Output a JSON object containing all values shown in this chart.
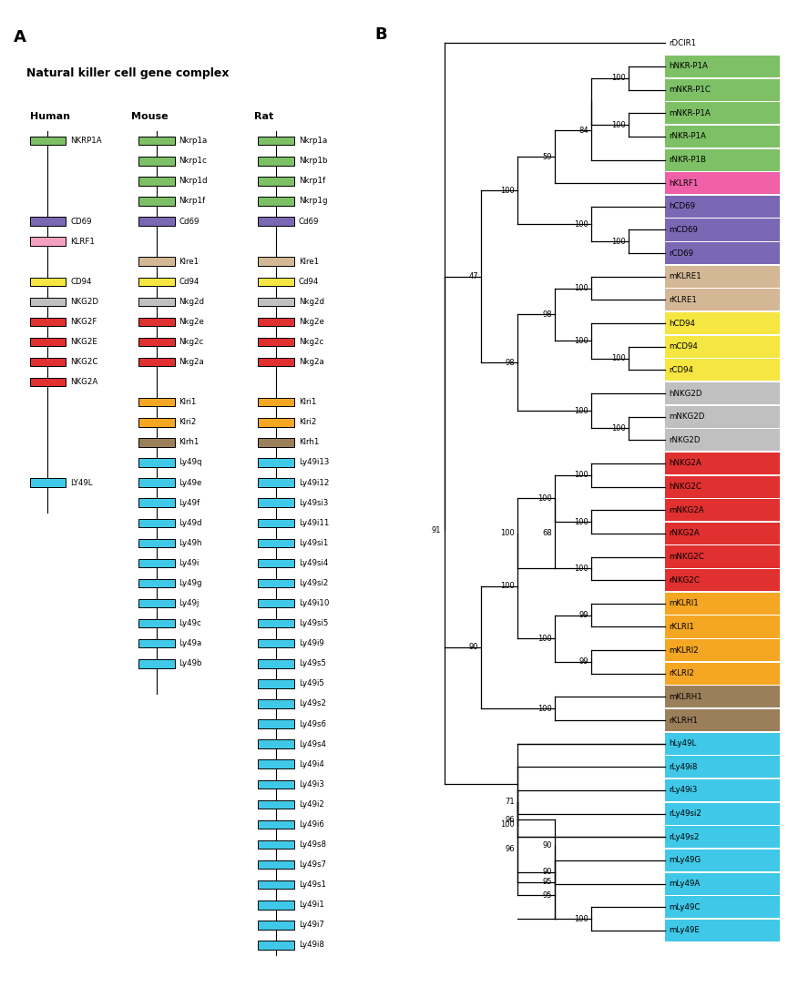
{
  "human_genes": [
    {
      "name": "NKRP1A",
      "color": "#7DC065",
      "row": 0
    },
    {
      "name": "CD69",
      "color": "#7B68B5",
      "row": 4
    },
    {
      "name": "KLRF1",
      "color": "#F4A0C0",
      "row": 5
    },
    {
      "name": "CD94",
      "color": "#F5E642",
      "row": 7
    },
    {
      "name": "NKG2D",
      "color": "#C0C0C0",
      "row": 8
    },
    {
      "name": "NKG2F",
      "color": "#E03030",
      "row": 9
    },
    {
      "name": "NKG2E",
      "color": "#E03030",
      "row": 10
    },
    {
      "name": "NKG2C",
      "color": "#E03030",
      "row": 11
    },
    {
      "name": "NKG2A",
      "color": "#E03030",
      "row": 12
    },
    {
      "name": "LY49L",
      "color": "#40C8E8",
      "row": 17
    }
  ],
  "mouse_genes": [
    {
      "name": "Nkrp1a",
      "color": "#7DC065",
      "row": 0
    },
    {
      "name": "Nkrp1c",
      "color": "#7DC065",
      "row": 1
    },
    {
      "name": "Nkrp1d",
      "color": "#7DC065",
      "row": 2
    },
    {
      "name": "Nkrp1f",
      "color": "#7DC065",
      "row": 3
    },
    {
      "name": "Cd69",
      "color": "#7B68B5",
      "row": 4
    },
    {
      "name": "Klre1",
      "color": "#D4B896",
      "row": 6
    },
    {
      "name": "Cd94",
      "color": "#F5E642",
      "row": 7
    },
    {
      "name": "Nkg2d",
      "color": "#C0C0C0",
      "row": 8
    },
    {
      "name": "Nkg2e",
      "color": "#E03030",
      "row": 9
    },
    {
      "name": "Nkg2c",
      "color": "#E03030",
      "row": 10
    },
    {
      "name": "Nkg2a",
      "color": "#E03030",
      "row": 11
    },
    {
      "name": "Klri1",
      "color": "#F5A623",
      "row": 13
    },
    {
      "name": "Klri2",
      "color": "#F5A623",
      "row": 14
    },
    {
      "name": "Klrh1",
      "color": "#9B7F5A",
      "row": 15
    },
    {
      "name": "Ly49q",
      "color": "#40C8E8",
      "row": 16
    },
    {
      "name": "Ly49e",
      "color": "#40C8E8",
      "row": 17
    },
    {
      "name": "Ly49f",
      "color": "#40C8E8",
      "row": 18
    },
    {
      "name": "Ly49d",
      "color": "#40C8E8",
      "row": 19
    },
    {
      "name": "Ly49h",
      "color": "#40C8E8",
      "row": 20
    },
    {
      "name": "Ly49i",
      "color": "#40C8E8",
      "row": 21
    },
    {
      "name": "Ly49g",
      "color": "#40C8E8",
      "row": 22
    },
    {
      "name": "Ly49j",
      "color": "#40C8E8",
      "row": 23
    },
    {
      "name": "Ly49c",
      "color": "#40C8E8",
      "row": 24
    },
    {
      "name": "Ly49a",
      "color": "#40C8E8",
      "row": 25
    },
    {
      "name": "Ly49b",
      "color": "#40C8E8",
      "row": 26
    }
  ],
  "rat_genes": [
    {
      "name": "Nkrp1a",
      "color": "#7DC065",
      "row": 0
    },
    {
      "name": "Nkrp1b",
      "color": "#7DC065",
      "row": 1
    },
    {
      "name": "Nkrp1f",
      "color": "#7DC065",
      "row": 2
    },
    {
      "name": "Nkrp1g",
      "color": "#7DC065",
      "row": 3
    },
    {
      "name": "Cd69",
      "color": "#7B68B5",
      "row": 4
    },
    {
      "name": "Klre1",
      "color": "#D4B896",
      "row": 6
    },
    {
      "name": "Cd94",
      "color": "#F5E642",
      "row": 7
    },
    {
      "name": "Nkg2d",
      "color": "#C0C0C0",
      "row": 8
    },
    {
      "name": "Nkg2e",
      "color": "#E03030",
      "row": 9
    },
    {
      "name": "Nkg2c",
      "color": "#E03030",
      "row": 10
    },
    {
      "name": "Nkg2a",
      "color": "#E03030",
      "row": 11
    },
    {
      "name": "Klri1",
      "color": "#F5A623",
      "row": 13
    },
    {
      "name": "Klri2",
      "color": "#F5A623",
      "row": 14
    },
    {
      "name": "Klrh1",
      "color": "#9B7F5A",
      "row": 15
    },
    {
      "name": "Ly49i13",
      "color": "#40C8E8",
      "row": 16
    },
    {
      "name": "Ly49i12",
      "color": "#40C8E8",
      "row": 17
    },
    {
      "name": "Ly49si3",
      "color": "#40C8E8",
      "row": 18
    },
    {
      "name": "Ly49i11",
      "color": "#40C8E8",
      "row": 19
    },
    {
      "name": "Ly49si1",
      "color": "#40C8E8",
      "row": 20
    },
    {
      "name": "Ly49si4",
      "color": "#40C8E8",
      "row": 21
    },
    {
      "name": "Ly49si2",
      "color": "#40C8E8",
      "row": 22
    },
    {
      "name": "Ly49i10",
      "color": "#40C8E8",
      "row": 23
    },
    {
      "name": "Ly49si5",
      "color": "#40C8E8",
      "row": 24
    },
    {
      "name": "Ly49i9",
      "color": "#40C8E8",
      "row": 25
    },
    {
      "name": "Ly49s5",
      "color": "#40C8E8",
      "row": 26
    },
    {
      "name": "Ly49i5",
      "color": "#40C8E8",
      "row": 27
    },
    {
      "name": "Ly49s2",
      "color": "#40C8E8",
      "row": 28
    },
    {
      "name": "Ly49s6",
      "color": "#40C8E8",
      "row": 29
    },
    {
      "name": "Ly49s4",
      "color": "#40C8E8",
      "row": 30
    },
    {
      "name": "Ly49i4",
      "color": "#40C8E8",
      "row": 31
    },
    {
      "name": "Ly49i3",
      "color": "#40C8E8",
      "row": 32
    },
    {
      "name": "Ly49i2",
      "color": "#40C8E8",
      "row": 33
    },
    {
      "name": "Ly49i6",
      "color": "#40C8E8",
      "row": 34
    },
    {
      "name": "Ly49s8",
      "color": "#40C8E8",
      "row": 35
    },
    {
      "name": "Ly49s7",
      "color": "#40C8E8",
      "row": 36
    },
    {
      "name": "Ly49s1",
      "color": "#40C8E8",
      "row": 37
    },
    {
      "name": "Ly49i1",
      "color": "#40C8E8",
      "row": 38
    },
    {
      "name": "Ly49i7",
      "color": "#40C8E8",
      "row": 39
    },
    {
      "name": "Ly49i8",
      "color": "#40C8E8",
      "row": 40
    }
  ],
  "tree_leaves": [
    {
      "name": "rDCIR1",
      "y": 1,
      "bg": "white"
    },
    {
      "name": "hNKR-P1A",
      "y": 2,
      "bg": "#7DC065"
    },
    {
      "name": "mNKR-P1C",
      "y": 3,
      "bg": "#7DC065"
    },
    {
      "name": "mNKR-P1A",
      "y": 4,
      "bg": "#7DC065"
    },
    {
      "name": "rNKR-P1A",
      "y": 5,
      "bg": "#7DC065"
    },
    {
      "name": "rNKR-P1B",
      "y": 6,
      "bg": "#7DC065"
    },
    {
      "name": "hKLRF1",
      "y": 7,
      "bg": "#F060A8"
    },
    {
      "name": "hCD69",
      "y": 8,
      "bg": "#7B68B5"
    },
    {
      "name": "mCD69",
      "y": 9,
      "bg": "#7B68B5"
    },
    {
      "name": "rCD69",
      "y": 10,
      "bg": "#7B68B5"
    },
    {
      "name": "mKLRE1",
      "y": 11,
      "bg": "#D4B896"
    },
    {
      "name": "rKLRE1",
      "y": 12,
      "bg": "#D4B896"
    },
    {
      "name": "hCD94",
      "y": 13,
      "bg": "#F5E642"
    },
    {
      "name": "mCD94",
      "y": 14,
      "bg": "#F5E642"
    },
    {
      "name": "rCD94",
      "y": 15,
      "bg": "#F5E642"
    },
    {
      "name": "hNKG2D",
      "y": 16,
      "bg": "#C0C0C0"
    },
    {
      "name": "mNKG2D",
      "y": 17,
      "bg": "#C0C0C0"
    },
    {
      "name": "rNKG2D",
      "y": 18,
      "bg": "#C0C0C0"
    },
    {
      "name": "hNKG2A",
      "y": 19,
      "bg": "#E03030"
    },
    {
      "name": "hNKG2C",
      "y": 20,
      "bg": "#E03030"
    },
    {
      "name": "mNKG2A",
      "y": 21,
      "bg": "#E03030"
    },
    {
      "name": "rNKG2A",
      "y": 22,
      "bg": "#E03030"
    },
    {
      "name": "mNKG2C",
      "y": 23,
      "bg": "#E03030"
    },
    {
      "name": "rNKG2C",
      "y": 24,
      "bg": "#E03030"
    },
    {
      "name": "mKLRI1",
      "y": 25,
      "bg": "#F5A623"
    },
    {
      "name": "rKLRI1",
      "y": 26,
      "bg": "#F5A623"
    },
    {
      "name": "mKLRI2",
      "y": 27,
      "bg": "#F5A623"
    },
    {
      "name": "rKLRI2",
      "y": 28,
      "bg": "#F5A623"
    },
    {
      "name": "mKLRH1",
      "y": 29,
      "bg": "#9B7F5A"
    },
    {
      "name": "rKLRH1",
      "y": 30,
      "bg": "#9B7F5A"
    },
    {
      "name": "hLy49L",
      "y": 31,
      "bg": "#40C8E8"
    },
    {
      "name": "rLy49i8",
      "y": 32,
      "bg": "#40C8E8"
    },
    {
      "name": "rLy49i3",
      "y": 33,
      "bg": "#40C8E8"
    },
    {
      "name": "rLy49si2",
      "y": 34,
      "bg": "#40C8E8"
    },
    {
      "name": "rLy49s2",
      "y": 35,
      "bg": "#40C8E8"
    },
    {
      "name": "mLy49G",
      "y": 36,
      "bg": "#40C8E8"
    },
    {
      "name": "mLy49A",
      "y": 37,
      "bg": "#40C8E8"
    },
    {
      "name": "mLy49C",
      "y": 38,
      "bg": "#40C8E8"
    },
    {
      "name": "mLy49E",
      "y": 39,
      "bg": "#40C8E8"
    }
  ]
}
